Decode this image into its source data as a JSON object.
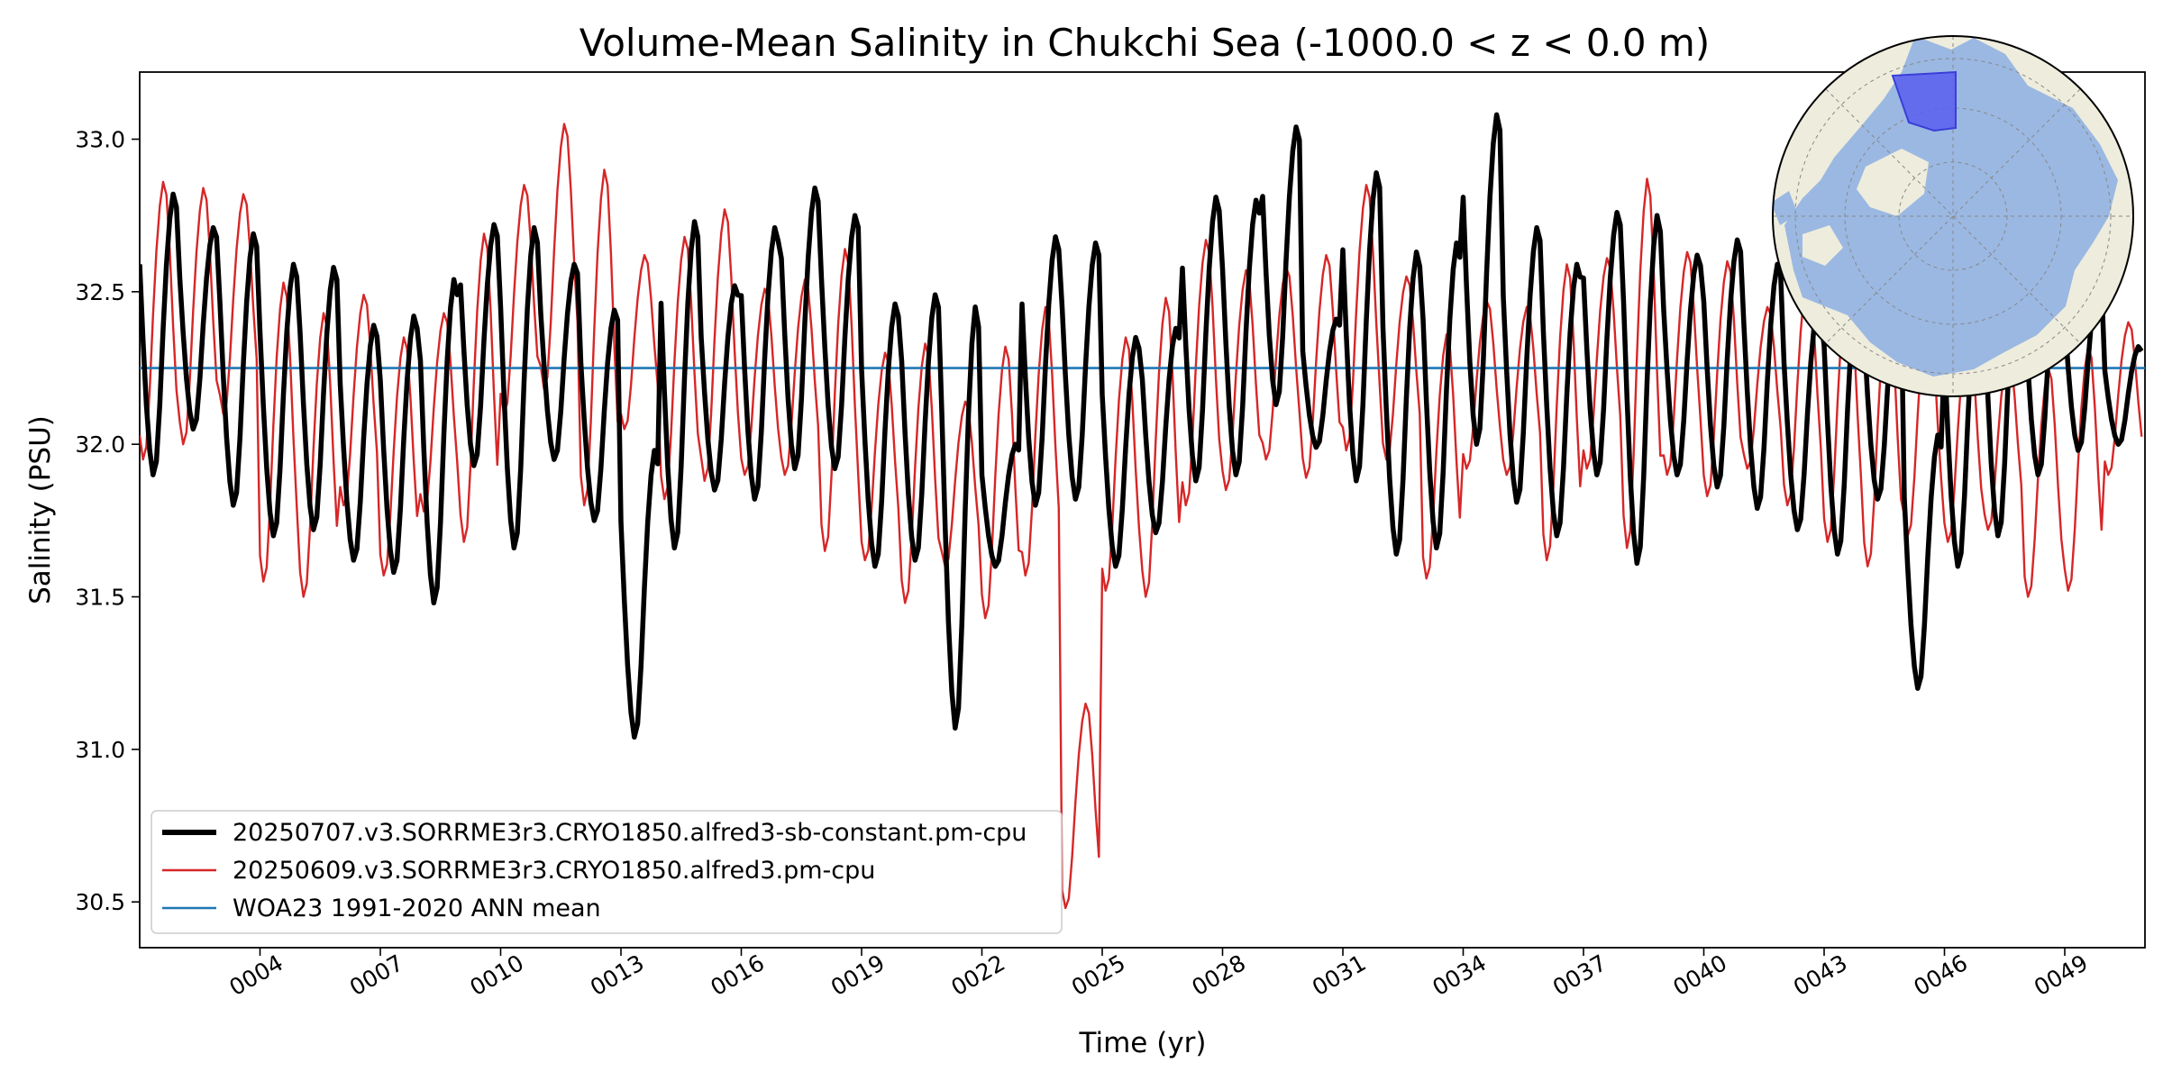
{
  "chart_data": {
    "type": "line",
    "title": "Volume-Mean Salinity in Chukchi Sea (-1000.0 < z < 0.0 m)",
    "xlabel": "Time (yr)",
    "ylabel": "Salinity (PSU)",
    "xlim": [
      1.0,
      51.0
    ],
    "ylim": [
      30.35,
      33.22
    ],
    "x_ticks": [
      4,
      7,
      10,
      13,
      16,
      19,
      22,
      25,
      28,
      31,
      34,
      37,
      40,
      43,
      46,
      49
    ],
    "x_tick_labels": [
      "0004",
      "0007",
      "0010",
      "0013",
      "0016",
      "0019",
      "0022",
      "0025",
      "0028",
      "0031",
      "0034",
      "0037",
      "0040",
      "0043",
      "0046",
      "0049"
    ],
    "y_ticks": [
      30.5,
      31.0,
      31.5,
      32.0,
      32.5,
      33.0
    ],
    "y_tick_labels": [
      "30.5",
      "31.0",
      "31.5",
      "32.0",
      "32.5",
      "33.0"
    ],
    "grid": false,
    "legend_location": "lower-left",
    "inset": "north polar map with Chukchi Sea region highlighted",
    "series": [
      {
        "name": "20250707.v3.SORRME3r3.CRYO1850.alfred3-sb-constant.pm-cpu",
        "color": "#000000",
        "style": "thick",
        "peak_month": 10,
        "annual_max": [
          32.82,
          32.71,
          32.69,
          32.59,
          32.58,
          32.39,
          32.42,
          32.54,
          32.72,
          32.71,
          32.59,
          32.44,
          31.98,
          32.73,
          32.52,
          32.71,
          32.84,
          32.75,
          32.46,
          32.49,
          32.45,
          32.0,
          32.68,
          32.66,
          32.35,
          32.38,
          32.81,
          32.8,
          33.04,
          32.41,
          32.89,
          32.63,
          32.66,
          33.08,
          32.71,
          32.59,
          32.76,
          32.75,
          32.62,
          32.67,
          32.59,
          32.45,
          32.55,
          32.53,
          32.03,
          32.53,
          32.65,
          32.63,
          32.55,
          32.32
        ],
        "annual_min": [
          31.9,
          32.05,
          31.8,
          31.7,
          31.72,
          31.62,
          31.58,
          31.48,
          31.93,
          31.66,
          31.95,
          31.75,
          31.04,
          31.66,
          31.85,
          31.82,
          31.92,
          31.92,
          31.6,
          31.62,
          31.07,
          31.6,
          31.8,
          31.82,
          31.6,
          31.71,
          31.88,
          31.9,
          32.13,
          31.99,
          31.88,
          31.64,
          31.66,
          32.0,
          31.81,
          31.7,
          31.9,
          31.61,
          31.9,
          31.86,
          31.79,
          31.72,
          31.64,
          31.82,
          31.2,
          31.6,
          31.7,
          31.9,
          31.98,
          32.0
        ]
      },
      {
        "name": "20250609.v3.SORRME3r3.CRYO1850.alfred3.pm-cpu",
        "color": "#d62728",
        "style": "thin",
        "peak_month": 7,
        "annual_max": [
          32.86,
          32.84,
          32.82,
          32.53,
          32.43,
          32.49,
          32.35,
          32.43,
          32.69,
          32.85,
          33.05,
          32.9,
          32.62,
          32.68,
          32.77,
          32.51,
          32.54,
          32.64,
          32.3,
          32.33,
          32.14,
          32.32,
          32.45,
          31.15,
          32.35,
          32.48,
          32.67,
          32.57,
          32.58,
          32.62,
          32.85,
          32.55,
          32.36,
          32.47,
          32.45,
          32.59,
          32.61,
          32.87,
          32.63,
          32.6,
          32.45,
          32.56,
          32.55,
          32.48,
          32.46,
          32.38,
          32.3,
          32.25,
          32.32,
          32.4
        ],
        "annual_min": [
          31.95,
          32.0,
          32.1,
          31.55,
          31.5,
          31.8,
          31.57,
          31.78,
          31.68,
          32.1,
          32.18,
          31.8,
          32.05,
          31.82,
          31.88,
          31.9,
          31.9,
          31.65,
          31.62,
          31.48,
          31.6,
          31.43,
          31.57,
          30.48,
          31.52,
          31.5,
          31.8,
          31.85,
          31.95,
          31.89,
          31.98,
          31.95,
          31.56,
          31.92,
          31.9,
          31.62,
          31.92,
          31.66,
          31.9,
          31.83,
          31.92,
          31.8,
          31.68,
          31.6,
          31.7,
          31.68,
          31.72,
          31.5,
          31.52,
          31.9
        ]
      },
      {
        "name": "WOA23 1991-2020 ANN mean",
        "color": "#1f77b4",
        "style": "reference",
        "constant": 32.25
      }
    ]
  }
}
